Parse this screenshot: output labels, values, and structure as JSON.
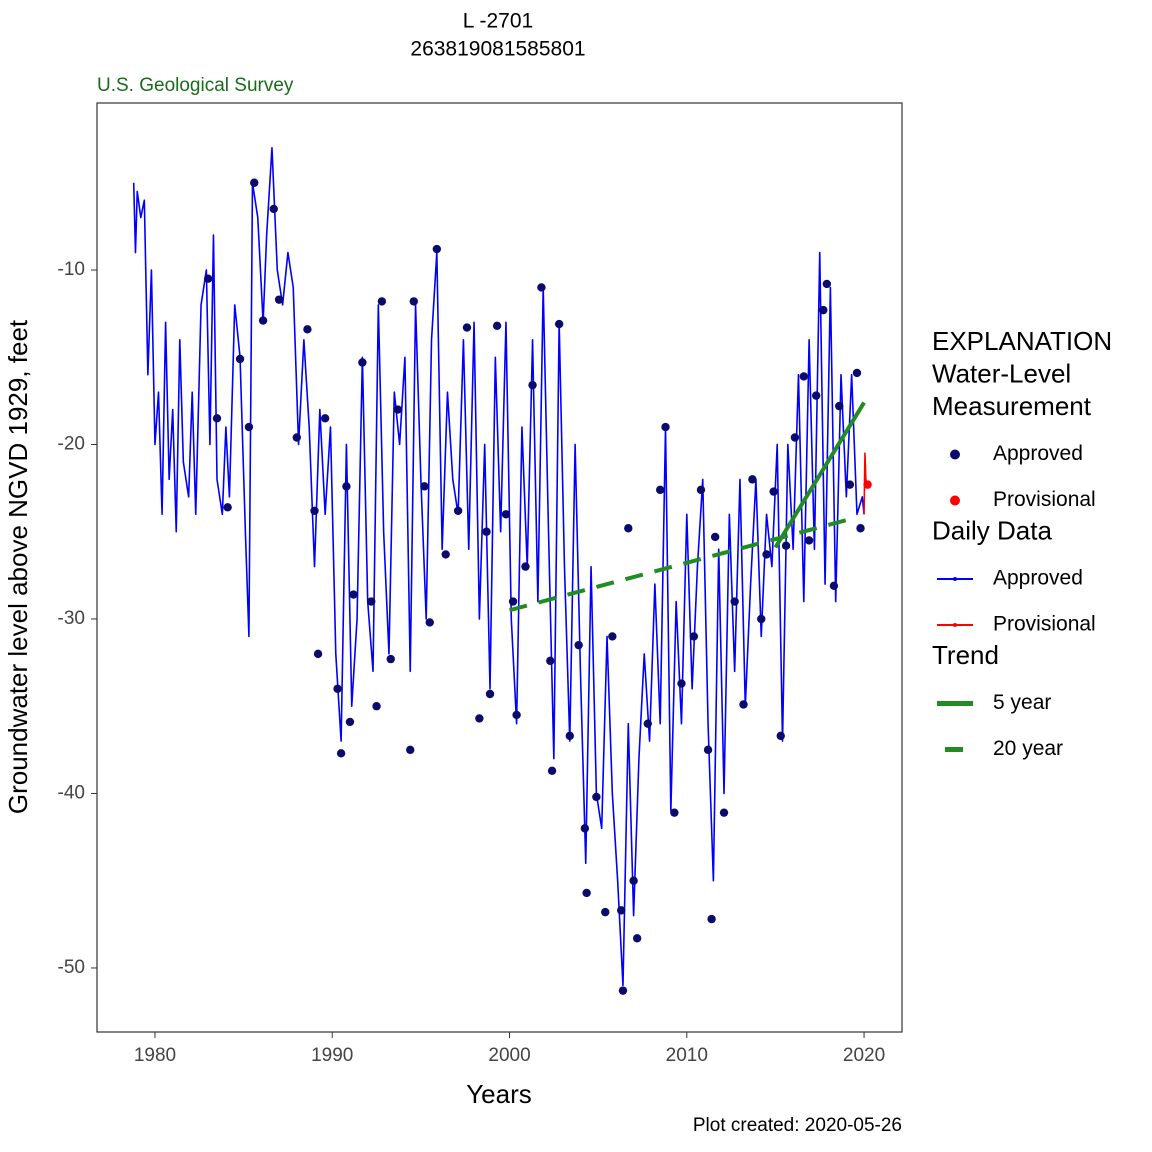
{
  "chart_data": {
    "type": "line",
    "title": "L -2701",
    "subtitle": "263819081585801",
    "source": "U.S. Geological Survey",
    "footnote": "Plot created: 2020-05-26",
    "x_label": "Years",
    "y_label": "Groundwater level above NGVD 1929, feet",
    "xlim": [
      1976.73,
      2022.14
    ],
    "xticks": [
      1980,
      1990,
      2000,
      2010,
      2020
    ],
    "ylim": [
      -53.67,
      -0.43
    ],
    "yticks": [
      -50,
      -40,
      -30,
      -20,
      -10
    ],
    "grid": false,
    "legend_position": "right",
    "groups": [
      {
        "title": [
          "EXPLANATION",
          "Water-Level",
          "Measurement"
        ],
        "series": [
          {
            "name": "Approved",
            "color": "#0b0b6e",
            "style": "points",
            "x": [
              1983.0,
              1983.5,
              1984.1,
              1984.8,
              1985.3,
              1985.6,
              1986.1,
              1986.7,
              1987.0,
              1988.0,
              1988.6,
              1989.0,
              1989.2,
              1989.6,
              1990.3,
              1990.5,
              1990.8,
              1991.0,
              1991.2,
              1991.7,
              1992.2,
              1992.5,
              1992.8,
              1993.3,
              1993.7,
              1994.4,
              1994.6,
              1995.2,
              1995.5,
              1995.9,
              1996.4,
              1997.1,
              1997.6,
              1998.3,
              1998.7,
              1998.9,
              1999.3,
              1999.8,
              2000.2,
              2000.4,
              2000.9,
              2001.3,
              2001.8,
              2002.3,
              2002.4,
              2002.8,
              2003.4,
              2003.9,
              2004.25,
              2004.35,
              2004.9,
              2005.4,
              2005.8,
              2006.3,
              2006.4,
              2006.7,
              2007.0,
              2007.2,
              2007.8,
              2008.5,
              2008.8,
              2009.3,
              2009.7,
              2010.4,
              2010.8,
              2011.2,
              2011.4,
              2011.6,
              2012.1,
              2012.7,
              2013.2,
              2013.7,
              2014.2,
              2014.5,
              2014.9,
              2015.3,
              2015.6,
              2016.1,
              2016.6,
              2016.9,
              2017.3,
              2017.7,
              2017.9,
              2018.3,
              2018.6,
              2019.2,
              2019.6,
              2019.8
            ],
            "values": [
              -10.5,
              -18.5,
              -23.6,
              -15.1,
              -19,
              -5,
              -12.9,
              -6.5,
              -11.7,
              -19.6,
              -13.4,
              -23.8,
              -32,
              -18.5,
              -34,
              -37.7,
              -22.4,
              -35.9,
              -28.6,
              -15.3,
              -29,
              -35,
              -11.8,
              -32.3,
              -18,
              -37.5,
              -11.8,
              -22.4,
              -30.2,
              -8.8,
              -26.3,
              -23.8,
              -13.3,
              -35.7,
              -25,
              -34.3,
              -13.2,
              -24,
              -29,
              -35.5,
              -27,
              -16.6,
              -11,
              -32.4,
              -38.7,
              -13.1,
              -36.7,
              -31.5,
              -42,
              -45.7,
              -40.2,
              -46.8,
              -31,
              -46.7,
              -51.3,
              -24.8,
              -45,
              -48.3,
              -36,
              -22.6,
              -19,
              -41.1,
              -33.7,
              -31,
              -22.6,
              -37.5,
              -47.2,
              -25.3,
              -41.1,
              -29,
              -34.9,
              -22,
              -30,
              -26.3,
              -22.7,
              -36.7,
              -25.8,
              -19.6,
              -16.1,
              -25.5,
              -17.2,
              -12.3,
              -10.8,
              -28.1,
              -17.8,
              -22.3,
              -15.9,
              -24.8
            ]
          },
          {
            "name": "Provisional",
            "color": "#ff0000",
            "style": "points",
            "x": [
              2020.2
            ],
            "values": [
              -22.3
            ]
          }
        ]
      },
      {
        "title": [
          "Daily Data"
        ],
        "series": [
          {
            "name": "Approved",
            "color": "#0000ff",
            "style": "line",
            "x": [
              1978.8,
              1978.9,
              1979.0,
              1979.2,
              1979.4,
              1979.6,
              1979.8,
              1980.0,
              1980.2,
              1980.4,
              1980.6,
              1980.8,
              1981.0,
              1981.2,
              1981.4,
              1981.6,
              1981.9,
              1982.1,
              1982.3,
              1982.6,
              1982.9,
              1983.1,
              1983.3,
              1983.5,
              1983.8,
              1984.0,
              1984.2,
              1984.5,
              1984.8,
              1985.1,
              1985.3,
              1985.5,
              1985.8,
              1986.1,
              1986.3,
              1986.6,
              1986.9,
              1987.2,
              1987.5,
              1987.8,
              1988.1,
              1988.4,
              1988.7,
              1989.0,
              1989.3,
              1989.6,
              1989.9,
              1990.2,
              1990.5,
              1990.8,
              1991.1,
              1991.4,
              1991.7,
              1992.0,
              1992.3,
              1992.6,
              1992.9,
              1993.2,
              1993.5,
              1993.8,
              1994.1,
              1994.4,
              1994.7,
              1995.0,
              1995.3,
              1995.6,
              1995.9,
              1996.2,
              1996.5,
              1996.8,
              1997.1,
              1997.4,
              1997.7,
              1998.0,
              1998.3,
              1998.6,
              1998.9,
              1999.2,
              1999.5,
              1999.8,
              2000.1,
              2000.4,
              2000.7,
              2001.0,
              2001.3,
              2001.6,
              2001.9,
              2002.2,
              2002.5,
              2002.8,
              2003.1,
              2003.4,
              2003.7,
              2004.0,
              2004.3,
              2004.6,
              2004.9,
              2005.2,
              2005.5,
              2005.8,
              2006.1,
              2006.4,
              2006.7,
              2007.0,
              2007.3,
              2007.6,
              2007.9,
              2008.2,
              2008.5,
              2008.8,
              2009.1,
              2009.4,
              2009.7,
              2010.0,
              2010.3,
              2010.6,
              2010.9,
              2011.2,
              2011.5,
              2011.8,
              2012.1,
              2012.4,
              2012.7,
              2013.0,
              2013.3,
              2013.6,
              2013.9,
              2014.2,
              2014.5,
              2014.8,
              2015.1,
              2015.4,
              2015.7,
              2016.0,
              2016.3,
              2016.6,
              2016.9,
              2017.2,
              2017.5,
              2017.8,
              2018.1,
              2018.4,
              2018.7,
              2019.0,
              2019.3,
              2019.6,
              2019.9,
              2020.0
            ],
            "values": [
              -5,
              -9,
              -5.5,
              -7,
              -6,
              -16,
              -10,
              -20,
              -17,
              -24,
              -13,
              -22,
              -18,
              -25,
              -14,
              -21,
              -23,
              -17,
              -24,
              -12,
              -10,
              -20,
              -8,
              -22,
              -24,
              -19,
              -23,
              -12,
              -15,
              -25,
              -31,
              -5,
              -7,
              -13,
              -8,
              -3,
              -10,
              -12,
              -9,
              -11,
              -20,
              -14,
              -19,
              -27,
              -18,
              -24,
              -19,
              -32,
              -37,
              -20,
              -35,
              -30,
              -15,
              -29,
              -33,
              -12,
              -25,
              -32,
              -17,
              -20,
              -15,
              -33,
              -12,
              -22,
              -30,
              -14,
              -9,
              -26,
              -17,
              -22,
              -24,
              -14,
              -26,
              -13,
              -30,
              -20,
              -34,
              -15,
              -25,
              -13,
              -30,
              -36,
              -19,
              -27,
              -14,
              -29,
              -11,
              -25,
              -38,
              -13,
              -27,
              -37,
              -20,
              -33,
              -44,
              -27,
              -40,
              -42,
              -31,
              -40,
              -45,
              -51,
              -36,
              -47,
              -38,
              -32,
              -37,
              -28,
              -36,
              -19,
              -41,
              -29,
              -36,
              -24,
              -34,
              -27,
              -22,
              -36,
              -45,
              -26,
              -40,
              -24,
              -33,
              -22,
              -35,
              -28,
              -22,
              -31,
              -24,
              -27,
              -20,
              -37,
              -20,
              -26,
              -16,
              -29,
              -14,
              -26,
              -9,
              -28,
              -11,
              -29,
              -16,
              -23,
              -16,
              -24,
              -23,
              -24
            ]
          },
          {
            "name": "Provisional",
            "color": "#ff0000",
            "style": "line",
            "x": [
              2020.0,
              2020.05,
              2020.1,
              2020.2
            ],
            "values": [
              -24,
              -20.5,
              -22,
              -22.3
            ]
          }
        ]
      },
      {
        "title": [
          "Trend"
        ],
        "series": [
          {
            "name": "5 year",
            "color": "#228b22",
            "style": "solid-trend",
            "x": [
              2015,
              2020
            ],
            "values": [
              -25.9,
              -17.6
            ]
          },
          {
            "name": "20 year",
            "color": "#228b22",
            "style": "dashed-trend",
            "x": [
              2000,
              2019.5
            ],
            "values": [
              -29.5,
              -24.2
            ]
          }
        ]
      }
    ]
  }
}
